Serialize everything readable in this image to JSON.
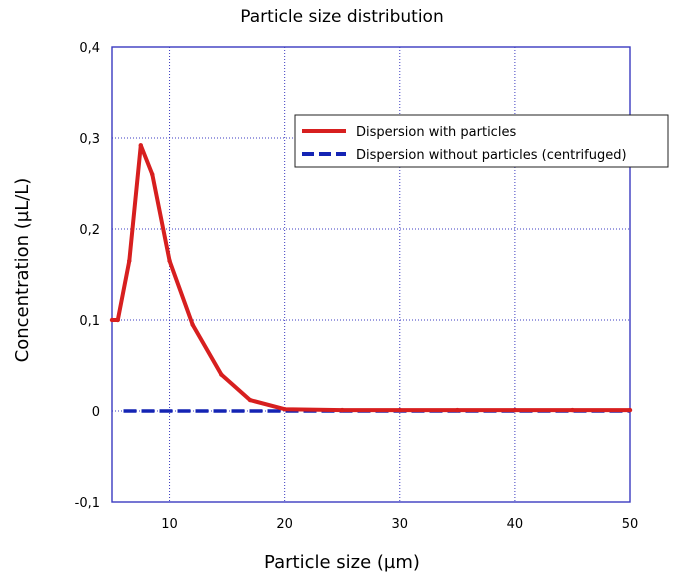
{
  "chart_data": {
    "type": "line",
    "title": "Particle size distribution",
    "xlabel": "Particle size (µm)",
    "ylabel": "Concentration (µL/L)",
    "xlim": [
      5,
      50
    ],
    "ylim": [
      -0.1,
      0.4
    ],
    "x_ticks": [
      10,
      20,
      30,
      40,
      50
    ],
    "x_tick_labels": [
      "10",
      "20",
      "30",
      "40",
      "50"
    ],
    "y_ticks": [
      -0.1,
      0,
      0.1,
      0.2,
      0.3,
      0.4
    ],
    "y_tick_labels": [
      "-0,1",
      "0",
      "0,1",
      "0,2",
      "0,3",
      "0,4"
    ],
    "grid": true,
    "legend_position": "top-right",
    "series": [
      {
        "name": "Dispersion with particles",
        "color": "#d71f1f",
        "style": "solid",
        "x": [
          5,
          5.5,
          6.5,
          7.5,
          8.5,
          10,
          12,
          14.5,
          17,
          20,
          25,
          30,
          35,
          40,
          45,
          50
        ],
        "y": [
          0.1,
          0.1,
          0.165,
          0.292,
          0.26,
          0.165,
          0.095,
          0.04,
          0.012,
          0.002,
          0.001,
          0.001,
          0.001,
          0.001,
          0.001,
          0.001
        ]
      },
      {
        "name": "Dispersion without particles (centrifuged)",
        "color": "#1424b4",
        "style": "dashed",
        "x": [
          6,
          10,
          15,
          20,
          25,
          30,
          35,
          40,
          45,
          50
        ],
        "y": [
          0,
          0,
          0,
          0,
          0,
          0,
          0,
          0,
          0,
          0
        ]
      }
    ]
  }
}
